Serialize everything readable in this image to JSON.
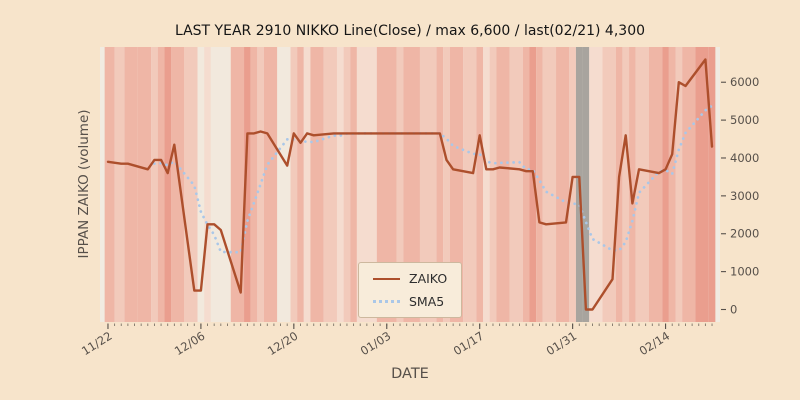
{
  "colors": {
    "figure_bg": "#f7e4cb",
    "plot_bg": "#f1ebe1",
    "tick_color": "#57504a",
    "title_color": "#151515"
  },
  "chart_data": {
    "type": "line",
    "title": "LAST YEAR 2910 NIKKO Line(Close) / max 6,600 / last(02/21) 4,300",
    "xlabel": "DATE",
    "ylabel": "IPPAN ZAIKO (volume)",
    "x_tick_labels": [
      "11/22",
      "12/06",
      "12/20",
      "01/03",
      "01/17",
      "01/31",
      "02/14"
    ],
    "x_tick_days": [
      0,
      14,
      28,
      42,
      56,
      70,
      84
    ],
    "y_ticks": [
      0,
      1000,
      2000,
      3000,
      4000,
      5000,
      6000
    ],
    "xlim_days": [
      -1.2,
      92.2
    ],
    "ylim": [
      -330,
      6930
    ],
    "max_value": 6600,
    "last_date": "02/21",
    "last_value": 4300,
    "dates": [
      "11/22",
      "11/24",
      "11/25",
      "11/28",
      "11/29",
      "11/30",
      "12/01",
      "12/02",
      "12/05",
      "12/06",
      "12/07",
      "12/08",
      "12/09",
      "12/12",
      "12/13",
      "12/14",
      "12/15",
      "12/16",
      "12/19",
      "12/20",
      "12/21",
      "12/22",
      "12/23",
      "12/26",
      "12/27",
      "12/28",
      "12/29",
      "12/30",
      "01/04",
      "01/05",
      "01/06",
      "01/10",
      "01/11",
      "01/12",
      "01/13",
      "01/16",
      "01/17",
      "01/18",
      "01/19",
      "01/20",
      "01/23",
      "01/24",
      "01/25",
      "01/26",
      "01/27",
      "01/30",
      "01/31",
      "02/01",
      "02/02",
      "02/03",
      "02/06",
      "02/07",
      "02/08",
      "02/09",
      "02/10",
      "02/13",
      "02/14",
      "02/15",
      "02/16",
      "02/17",
      "02/20",
      "02/21"
    ],
    "days": [
      0,
      2,
      3,
      6,
      7,
      8,
      9,
      10,
      13,
      14,
      15,
      16,
      17,
      20,
      21,
      22,
      23,
      24,
      27,
      28,
      29,
      30,
      31,
      34,
      35,
      36,
      37,
      38,
      43,
      44,
      45,
      49,
      50,
      51,
      52,
      55,
      56,
      57,
      58,
      59,
      62,
      63,
      64,
      65,
      66,
      69,
      70,
      71,
      72,
      73,
      76,
      77,
      78,
      79,
      80,
      83,
      84,
      85,
      86,
      87,
      90,
      91
    ],
    "series": [
      {
        "name": "ZAIKO",
        "color": "#ad4f2c",
        "line_style": "solid",
        "values": [
          3900,
          3850,
          3850,
          3700,
          3950,
          3950,
          3600,
          4350,
          500,
          500,
          2250,
          2250,
          2100,
          450,
          4650,
          4650,
          4700,
          4650,
          3800,
          4650,
          4400,
          4650,
          4600,
          4650,
          4650,
          4650,
          4650,
          4650,
          4650,
          4650,
          4650,
          4650,
          4650,
          3950,
          3700,
          3600,
          4600,
          3700,
          3700,
          3750,
          3700,
          3650,
          3650,
          2300,
          2250,
          2300,
          3500,
          3500,
          0,
          0,
          800,
          3500,
          4600,
          2800,
          3700,
          3600,
          3700,
          4100,
          6000,
          5900,
          6600,
          4300
        ]
      },
      {
        "name": "SMA5",
        "color": "#aac7e8",
        "line_style": "dotted",
        "derived_from": "ZAIKO",
        "window": 5
      }
    ],
    "bands": {
      "palette": [
        "#f2e9dd",
        "#f5dccf",
        "#f2cabb",
        "#efb6a6",
        "#ea9e8e",
        "#a8a49e"
      ],
      "levels": [
        3,
        2,
        3,
        3,
        2,
        3,
        4,
        3,
        2,
        0,
        1,
        0,
        0,
        3,
        4,
        3,
        2,
        3,
        0,
        2,
        3,
        1,
        3,
        2,
        1,
        2,
        3,
        1,
        3,
        2,
        3,
        2,
        3,
        2,
        3,
        2,
        3,
        1,
        2,
        3,
        2,
        3,
        4,
        3,
        2,
        3,
        2,
        5,
        5,
        1,
        2,
        3,
        2,
        3,
        2,
        3,
        4,
        3,
        2,
        3,
        4,
        4
      ]
    },
    "legend": {
      "items": [
        {
          "label": "ZAIKO"
        },
        {
          "label": "SMA5"
        }
      ]
    }
  }
}
